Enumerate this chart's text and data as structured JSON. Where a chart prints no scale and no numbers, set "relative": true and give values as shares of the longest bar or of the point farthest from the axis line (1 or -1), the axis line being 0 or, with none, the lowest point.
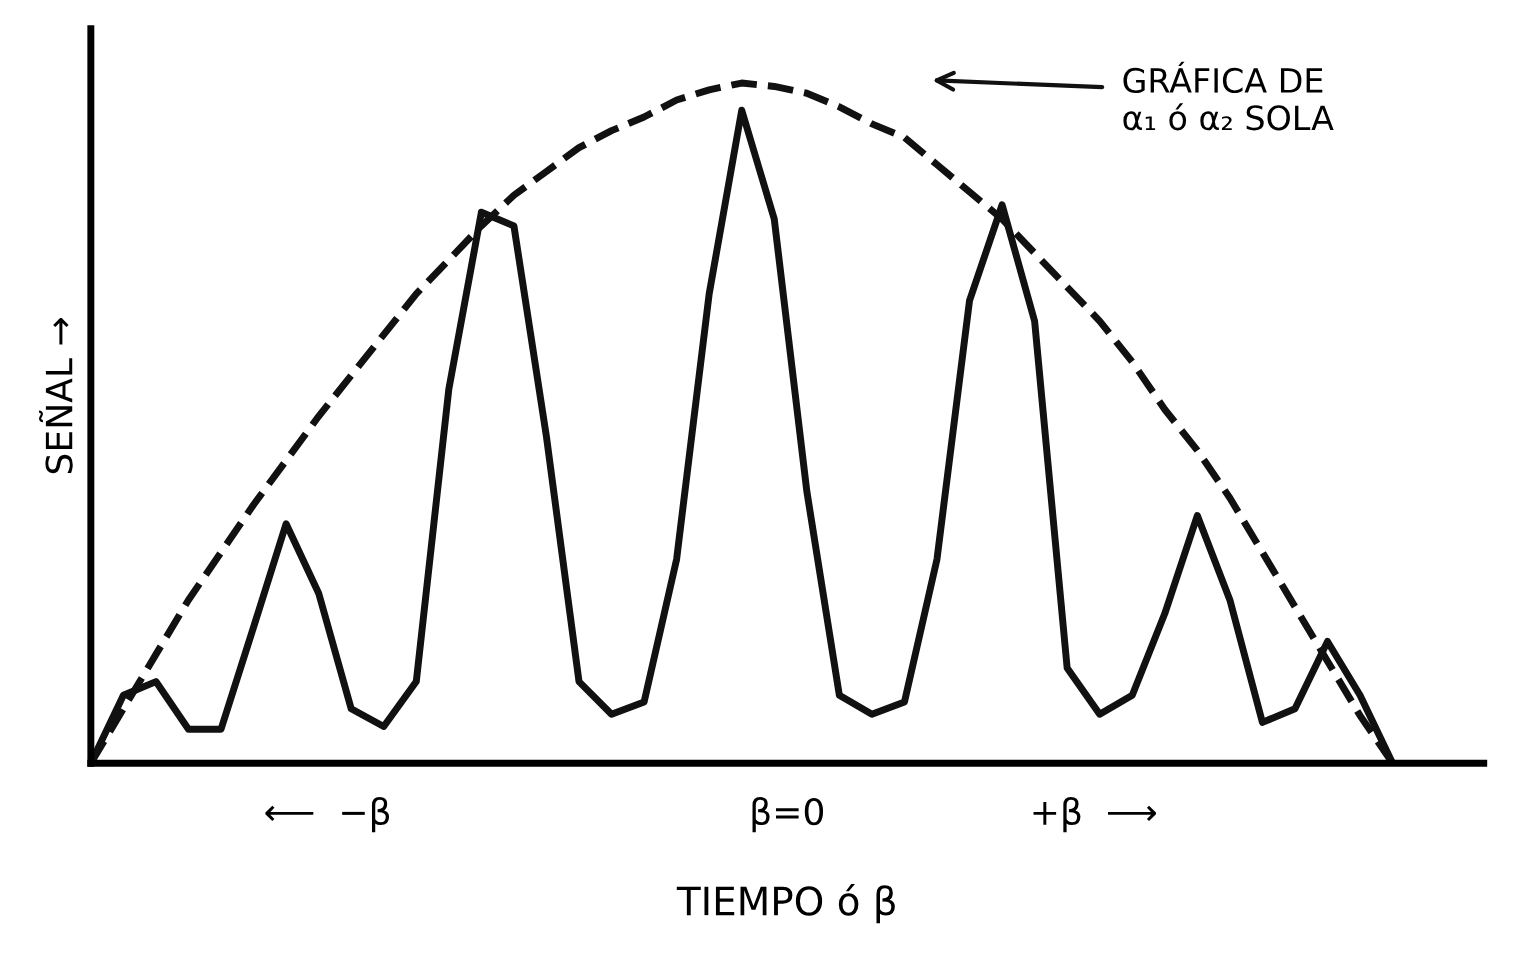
{
  "chart_data": {
    "type": "line",
    "relative": true,
    "xlabel": "TIEMPO ó β",
    "ylabel": "SEÑAL →",
    "categories": [
      null,
      null,
      null,
      null,
      null,
      null,
      null,
      null,
      null,
      null,
      null,
      null,
      null,
      null,
      null,
      null,
      null,
      null,
      null,
      null,
      null,
      null,
      null,
      null,
      null,
      null,
      null,
      null,
      null,
      null,
      null,
      null,
      null,
      null,
      null,
      null,
      null,
      null,
      null,
      null,
      null
    ],
    "annotations": [
      "GRÁFICA DE\nα₁ ó α₂ SOLA",
      "⟵  −β",
      "β=0",
      "+β  ⟶"
    ],
    "series": [
      {
        "color": "#111111",
        "line_style": "solid",
        "values": [
          0,
          0.1,
          0.12,
          0.05,
          0.05,
          0.2,
          0.352,
          0.25,
          0.08,
          0.054,
          0.12,
          0.55,
          0.81,
          0.79,
          0.48,
          0.12,
          0.072,
          0.09,
          0.3,
          0.69,
          0.96,
          0.8,
          0.4,
          0.1,
          0.072,
          0.09,
          0.3,
          0.68,
          0.821,
          0.65,
          0.14,
          0.072,
          0.1,
          0.22,
          0.364,
          0.24,
          0.06,
          0.08,
          0.179,
          0.1,
          0
        ]
      },
      {
        "color": "#111111",
        "line_style": "dashed",
        "values": [
          0,
          0.08,
          0.16,
          0.24,
          0.31,
          0.38,
          0.445,
          0.51,
          0.57,
          0.63,
          0.69,
          0.74,
          0.79,
          0.835,
          0.87,
          0.905,
          0.93,
          0.95,
          0.975,
          0.99,
          1.0,
          0.995,
          0.985,
          0.965,
          0.94,
          0.92,
          0.88,
          0.84,
          0.8,
          0.75,
          0.7,
          0.65,
          0.59,
          0.52,
          0.46,
          0.39,
          0.31,
          0.23,
          0.15,
          0.07,
          0
        ]
      }
    ]
  }
}
